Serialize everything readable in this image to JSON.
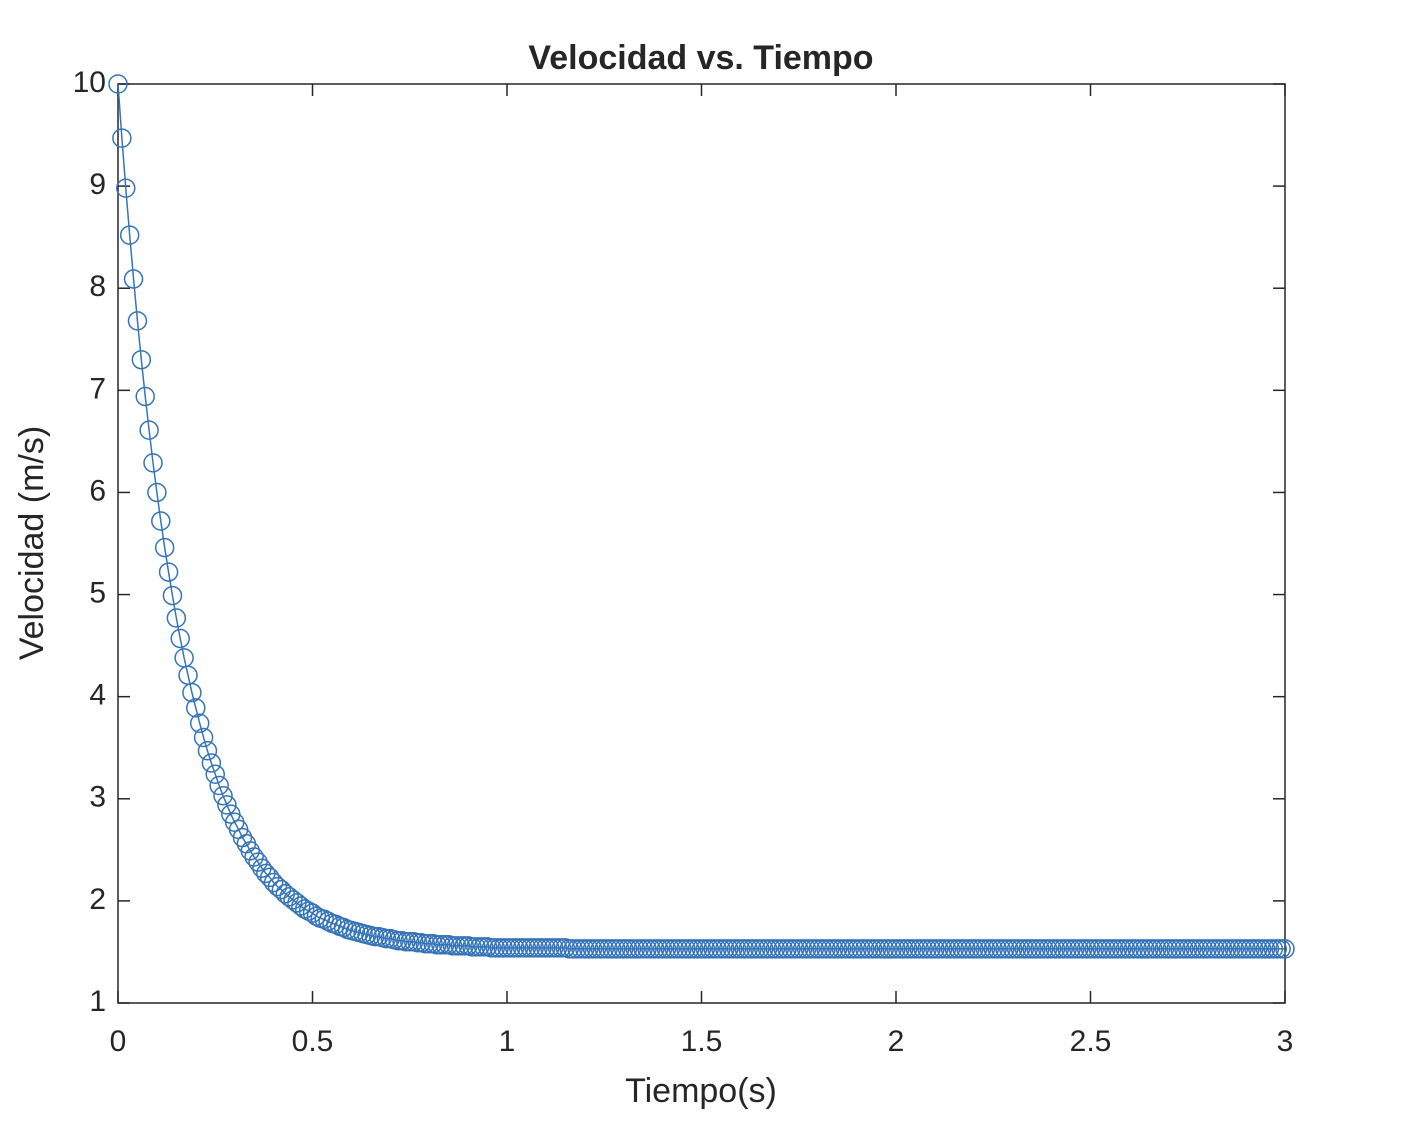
{
  "chart_data": {
    "type": "line",
    "title": "Velocidad vs. Tiempo",
    "xlabel": "Tiempo(s)",
    "ylabel": "Velocidad (m/s)",
    "color": "#3574b8",
    "marker": "o",
    "xlim": [
      0,
      3
    ],
    "ylim": [
      1,
      10
    ],
    "xticks": [
      0,
      0.5,
      1,
      1.5,
      2,
      2.5,
      3
    ],
    "yticks": [
      1,
      2,
      3,
      4,
      5,
      6,
      7,
      8,
      9,
      10
    ],
    "x": [
      0,
      0.01,
      0.02,
      0.03,
      0.04,
      0.05,
      0.06,
      0.07,
      0.08,
      0.09,
      0.1,
      0.11,
      0.12,
      0.13,
      0.14,
      0.15,
      0.16,
      0.17,
      0.18,
      0.19,
      0.2,
      0.21,
      0.22,
      0.23,
      0.24,
      0.25,
      0.26,
      0.27,
      0.28,
      0.29,
      0.3,
      0.31,
      0.32,
      0.33,
      0.34,
      0.35,
      0.36,
      0.37,
      0.38,
      0.39,
      0.4,
      0.41,
      0.42,
      0.43,
      0.44,
      0.45,
      0.46,
      0.47,
      0.48,
      0.49,
      0.5,
      0.51,
      0.52,
      0.53,
      0.54,
      0.55,
      0.56,
      0.57,
      0.58,
      0.59,
      0.6,
      0.61,
      0.62,
      0.63,
      0.64,
      0.65,
      0.66,
      0.67,
      0.68,
      0.69,
      0.7,
      0.71,
      0.72,
      0.73,
      0.74,
      0.75,
      0.76,
      0.77,
      0.78,
      0.79,
      0.8,
      0.81,
      0.82,
      0.83,
      0.84,
      0.85,
      0.86,
      0.87,
      0.88,
      0.89,
      0.9,
      0.91,
      0.92,
      0.93,
      0.94,
      0.95,
      0.96,
      0.97,
      0.98,
      0.99,
      1,
      1.01,
      1.02,
      1.03,
      1.04,
      1.05,
      1.06,
      1.07,
      1.08,
      1.09,
      1.1,
      1.11,
      1.12,
      1.13,
      1.14,
      1.15,
      1.16,
      1.17,
      1.18,
      1.19,
      1.2,
      1.21,
      1.22,
      1.23,
      1.24,
      1.25,
      1.26,
      1.27,
      1.28,
      1.29,
      1.3,
      1.31,
      1.32,
      1.33,
      1.34,
      1.35,
      1.36,
      1.37,
      1.38,
      1.39,
      1.4,
      1.41,
      1.42,
      1.43,
      1.44,
      1.45,
      1.46,
      1.47,
      1.48,
      1.49,
      1.5,
      1.51,
      1.52,
      1.53,
      1.54,
      1.55,
      1.56,
      1.57,
      1.58,
      1.59,
      1.6,
      1.61,
      1.62,
      1.63,
      1.64,
      1.65,
      1.66,
      1.67,
      1.68,
      1.69,
      1.7,
      1.71,
      1.72,
      1.73,
      1.74,
      1.75,
      1.76,
      1.77,
      1.78,
      1.79,
      1.8,
      1.81,
      1.82,
      1.83,
      1.84,
      1.85,
      1.86,
      1.87,
      1.88,
      1.89,
      1.9,
      1.91,
      1.92,
      1.93,
      1.94,
      1.95,
      1.96,
      1.97,
      1.98,
      1.99,
      2,
      2.01,
      2.02,
      2.03,
      2.04,
      2.05,
      2.06,
      2.07,
      2.08,
      2.09,
      2.1,
      2.11,
      2.12,
      2.13,
      2.14,
      2.15,
      2.16,
      2.17,
      2.18,
      2.19,
      2.2,
      2.21,
      2.22,
      2.23,
      2.24,
      2.25,
      2.26,
      2.27,
      2.28,
      2.29,
      2.3,
      2.31,
      2.32,
      2.33,
      2.34,
      2.35,
      2.36,
      2.37,
      2.38,
      2.39,
      2.4,
      2.41,
      2.42,
      2.43,
      2.44,
      2.45,
      2.46,
      2.47,
      2.48,
      2.49,
      2.5,
      2.51,
      2.52,
      2.53,
      2.54,
      2.55,
      2.56,
      2.57,
      2.58,
      2.59,
      2.6,
      2.61,
      2.62,
      2.63,
      2.64,
      2.65,
      2.66,
      2.67,
      2.68,
      2.69,
      2.7,
      2.71,
      2.72,
      2.73,
      2.74,
      2.75,
      2.76,
      2.77,
      2.78,
      2.79,
      2.8,
      2.81,
      2.82,
      2.83,
      2.84,
      2.85,
      2.86,
      2.87,
      2.88,
      2.89,
      2.9,
      2.91,
      2.92,
      2.93,
      2.94,
      2.95,
      2.96,
      2.97,
      2.98,
      2.99,
      3
    ],
    "values": [
      10,
      9.47,
      8.98,
      8.52,
      8.09,
      7.68,
      7.3,
      6.94,
      6.61,
      6.29,
      6,
      5.72,
      5.46,
      5.22,
      4.99,
      4.77,
      4.57,
      4.38,
      4.21,
      4.04,
      3.89,
      3.74,
      3.6,
      3.47,
      3.35,
      3.24,
      3.13,
      3.03,
      2.94,
      2.85,
      2.77,
      2.7,
      2.62,
      2.56,
      2.49,
      2.43,
      2.38,
      2.32,
      2.27,
      2.23,
      2.18,
      2.14,
      2.11,
      2.07,
      2.04,
      2.01,
      1.98,
      1.95,
      1.92,
      1.9,
      1.88,
      1.85,
      1.83,
      1.82,
      1.8,
      1.78,
      1.77,
      1.75,
      1.74,
      1.72,
      1.71,
      1.7,
      1.69,
      1.68,
      1.67,
      1.66,
      1.65,
      1.65,
      1.64,
      1.63,
      1.63,
      1.62,
      1.61,
      1.61,
      1.6,
      1.6,
      1.6,
      1.59,
      1.59,
      1.58,
      1.58,
      1.58,
      1.57,
      1.57,
      1.57,
      1.57,
      1.56,
      1.56,
      1.56,
      1.56,
      1.56,
      1.55,
      1.55,
      1.55,
      1.55,
      1.55,
      1.54,
      1.54,
      1.54,
      1.54,
      1.54,
      1.54,
      1.54,
      1.54,
      1.54,
      1.54,
      1.54,
      1.54,
      1.54,
      1.54,
      1.54,
      1.54,
      1.54,
      1.54,
      1.54,
      1.54,
      1.53,
      1.53,
      1.53,
      1.53,
      1.53,
      1.53,
      1.53,
      1.53,
      1.53,
      1.53,
      1.53,
      1.53,
      1.53,
      1.53,
      1.53,
      1.53,
      1.53,
      1.53,
      1.53,
      1.53,
      1.53,
      1.53,
      1.53,
      1.53,
      1.53,
      1.53,
      1.53,
      1.53,
      1.53,
      1.53,
      1.53,
      1.53,
      1.53,
      1.53,
      1.53,
      1.53,
      1.53,
      1.53,
      1.53,
      1.53,
      1.53,
      1.53,
      1.53,
      1.53,
      1.53,
      1.53,
      1.53,
      1.53,
      1.53,
      1.53,
      1.53,
      1.53,
      1.53,
      1.53,
      1.53,
      1.53,
      1.53,
      1.53,
      1.53,
      1.53,
      1.53,
      1.53,
      1.53,
      1.53,
      1.53,
      1.53,
      1.53,
      1.53,
      1.53,
      1.53,
      1.53,
      1.53,
      1.53,
      1.53,
      1.53,
      1.53,
      1.53,
      1.53,
      1.53,
      1.53,
      1.53,
      1.53,
      1.53,
      1.53,
      1.53,
      1.53,
      1.53,
      1.53,
      1.53,
      1.53,
      1.53,
      1.53,
      1.53,
      1.53,
      1.53,
      1.53,
      1.53,
      1.53,
      1.53,
      1.53,
      1.53,
      1.53,
      1.53,
      1.53,
      1.53,
      1.53,
      1.53,
      1.53,
      1.53,
      1.53,
      1.53,
      1.53,
      1.53,
      1.53,
      1.53,
      1.53,
      1.53,
      1.53,
      1.53,
      1.53,
      1.53,
      1.53,
      1.53,
      1.53,
      1.53,
      1.53,
      1.53,
      1.53,
      1.53,
      1.53,
      1.53,
      1.53,
      1.53,
      1.53,
      1.53,
      1.53,
      1.53,
      1.53,
      1.53,
      1.53,
      1.53,
      1.53,
      1.53,
      1.53,
      1.53,
      1.53,
      1.53,
      1.53,
      1.53,
      1.53,
      1.53,
      1.53,
      1.53,
      1.53,
      1.53,
      1.53,
      1.53,
      1.53,
      1.53,
      1.53,
      1.53,
      1.53,
      1.53,
      1.53,
      1.53,
      1.53,
      1.53,
      1.53,
      1.53,
      1.53,
      1.53,
      1.53,
      1.53,
      1.53,
      1.53,
      1.53,
      1.53,
      1.53,
      1.53,
      1.53,
      1.53,
      1.53,
      1.53,
      1.53,
      1.53
    ]
  }
}
